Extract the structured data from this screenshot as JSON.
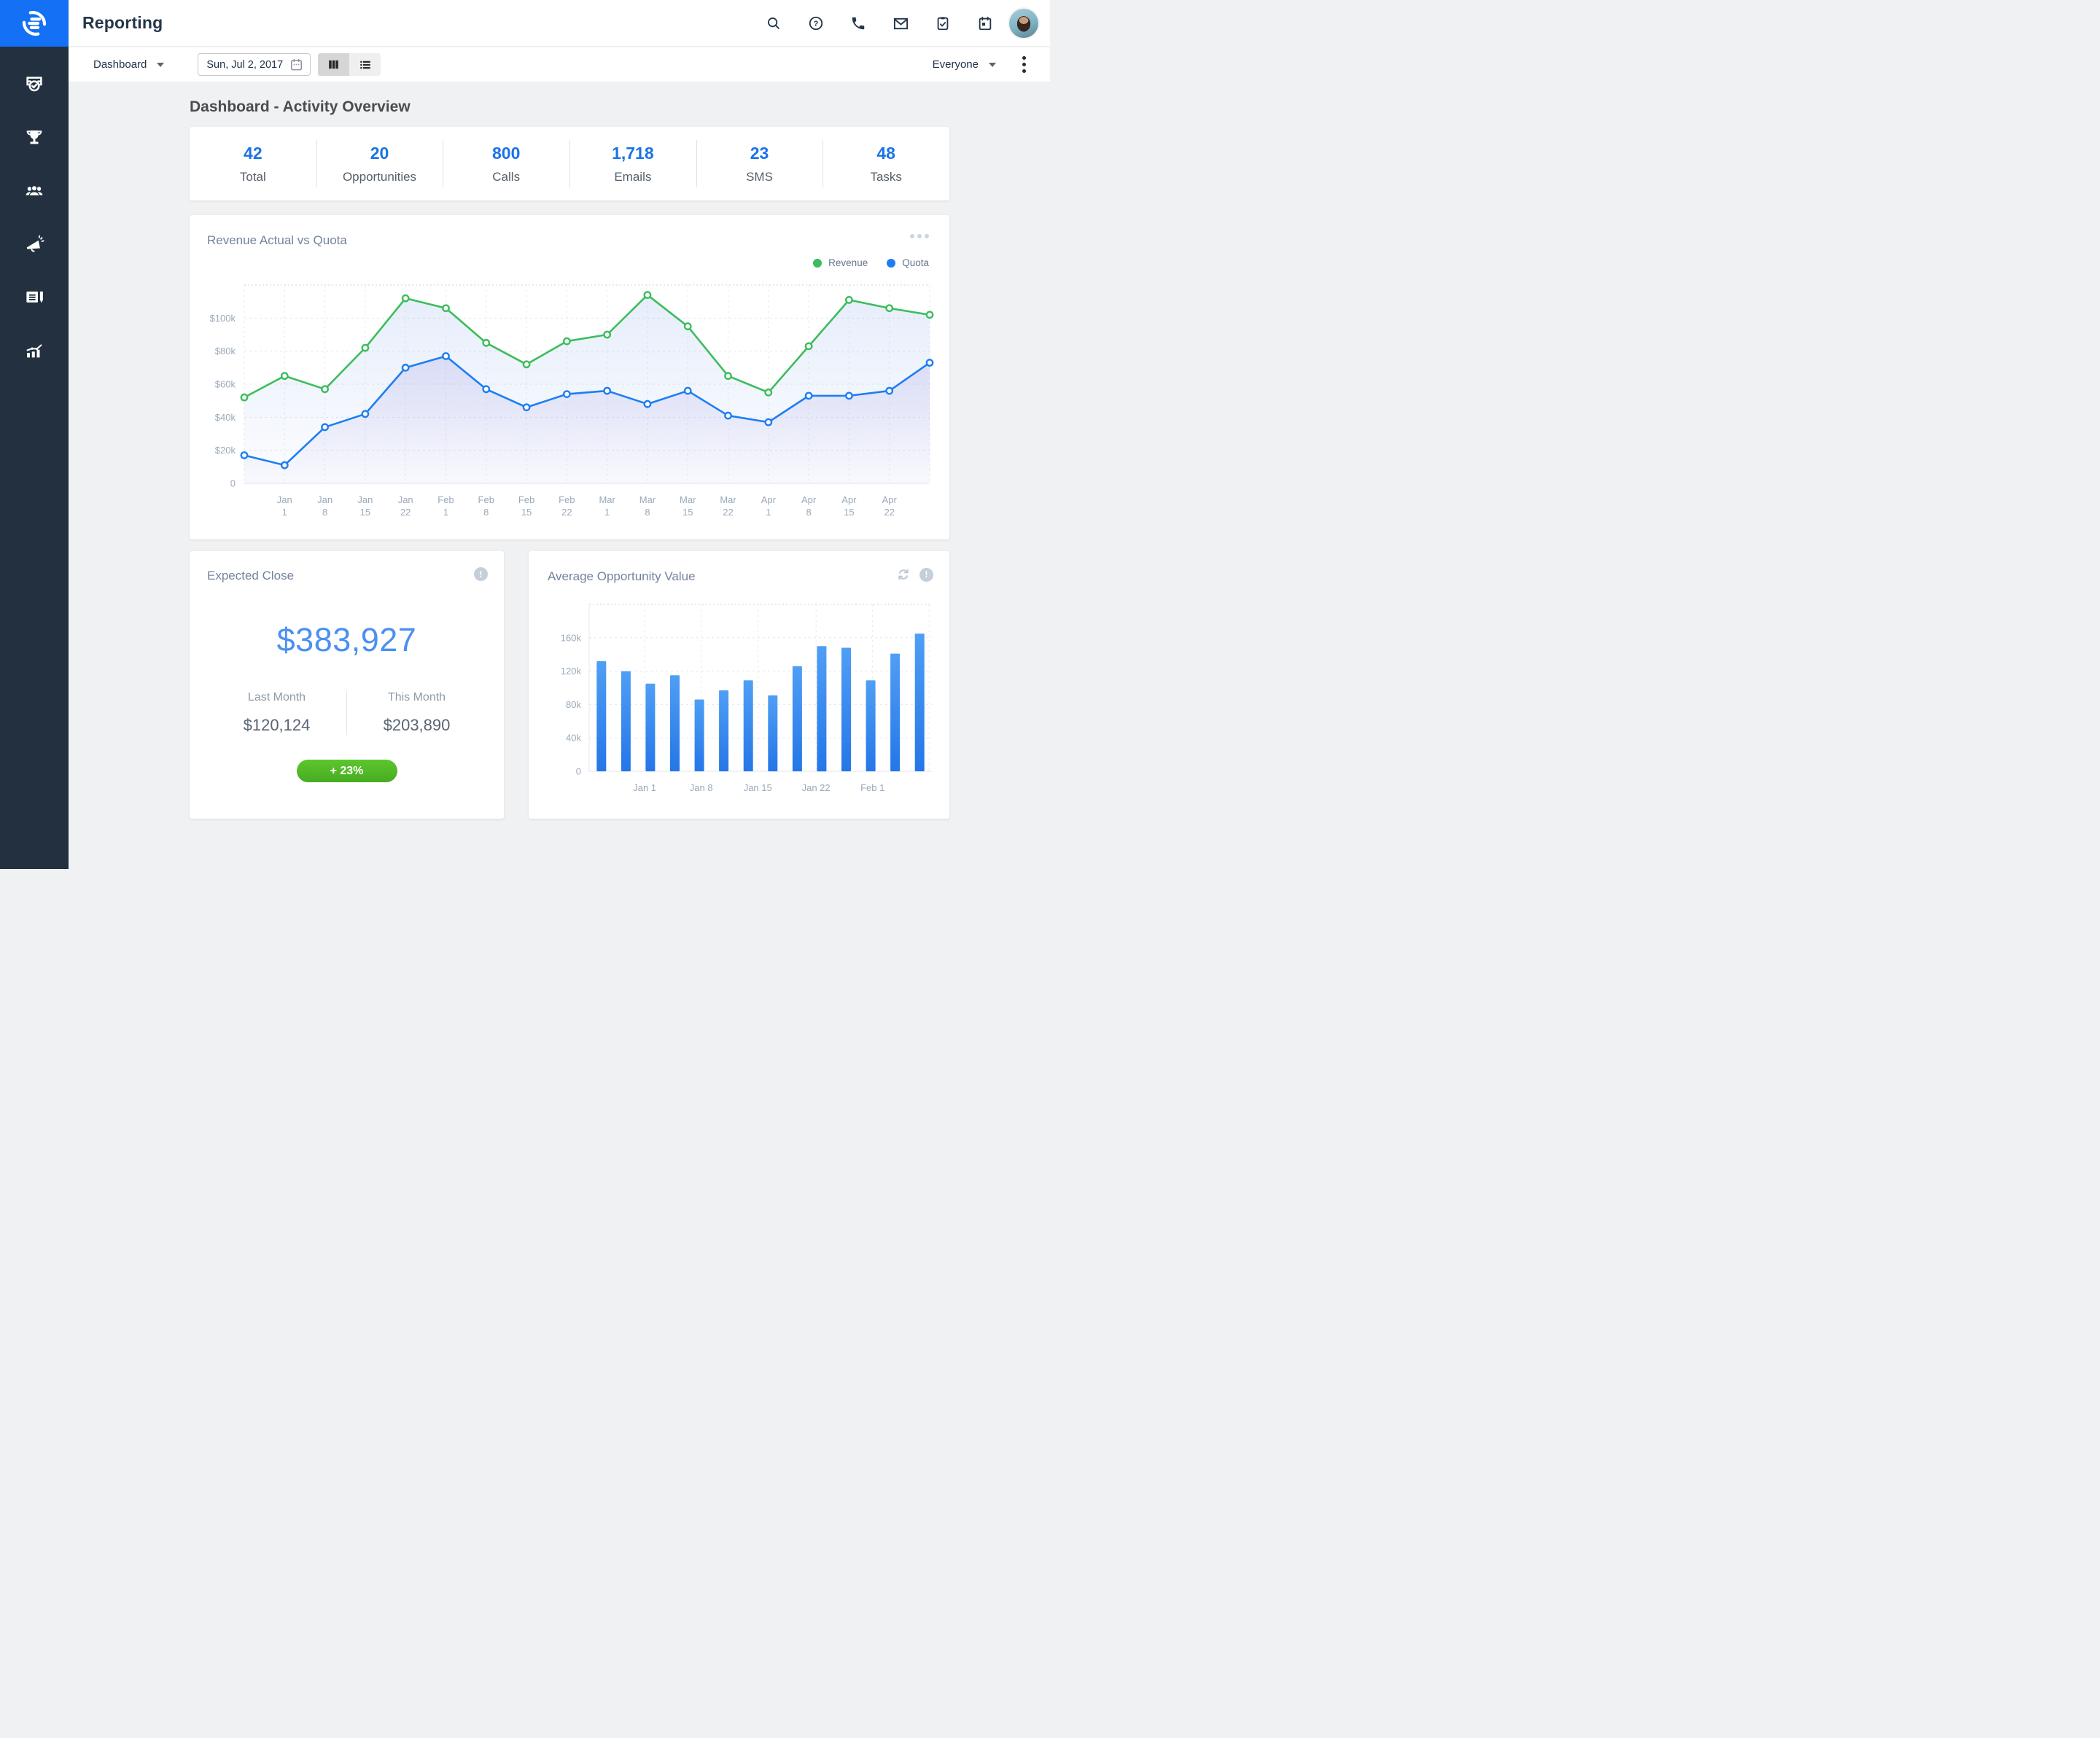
{
  "app": {
    "title": "Reporting"
  },
  "topbar": {
    "icons": [
      "search-icon",
      "help-icon",
      "phone-icon",
      "mail-icon",
      "tasks-clipboard-icon",
      "calendar-icon"
    ],
    "avatar": "user-avatar"
  },
  "toolbar": {
    "report_selector": "Dashboard",
    "date": "Sun, Jul 2, 2017",
    "view_modes": [
      "columns-view",
      "list-view"
    ],
    "active_view": "columns-view",
    "audience": "Everyone"
  },
  "sidebar": {
    "items": [
      "activities-icon",
      "deals-trophy-icon",
      "contacts-icon",
      "campaigns-megaphone-icon",
      "notes-icon",
      "reports-chart-icon"
    ]
  },
  "page": {
    "heading": "Dashboard - Activity Overview"
  },
  "stats": [
    {
      "value": "42",
      "label": "Total"
    },
    {
      "value": "20",
      "label": "Opportunities"
    },
    {
      "value": "800",
      "label": "Calls"
    },
    {
      "value": "1,718",
      "label": "Emails"
    },
    {
      "value": "23",
      "label": "SMS"
    },
    {
      "value": "48",
      "label": "Tasks"
    }
  ],
  "expected_close": {
    "title": "Expected Close",
    "amount": "$383,927",
    "columns": [
      {
        "label": "Last Month",
        "value": "$120,124"
      },
      {
        "label": "This Month",
        "value": "$203,890"
      }
    ],
    "change_badge": "+ 23%",
    "badge_color": "#4fb32a"
  },
  "colors": {
    "brand_blue": "#1470f4",
    "sidebar_bg": "#22303f",
    "stat_number_blue": "#1a73e8",
    "amount_blue": "#4a90f2",
    "revenue_green": "#3cbd5c",
    "quota_blue": "#1c7ef2",
    "bar_blue": "#2e84ee",
    "badge_green": "#4fb32a"
  },
  "chart_data": [
    {
      "id": "revenue-actual-vs-quota",
      "type": "line",
      "title": "Revenue Actual vs Quota",
      "x_labels": [
        "",
        "Jan 1",
        "Jan 8",
        "Jan 15",
        "Jan 22",
        "Feb 1",
        "Feb 8",
        "Feb 15",
        "Feb 22",
        "Mar 1",
        "Mar 8",
        "Mar 15",
        "Mar 22",
        "Apr 1",
        "Apr 8",
        "Apr 15",
        "Apr 22",
        ""
      ],
      "unit": "USD thousands",
      "series": [
        {
          "name": "Revenue",
          "color": "#3cbd5c",
          "values": [
            52,
            65,
            57,
            82,
            112,
            106,
            85,
            72,
            86,
            90,
            114,
            95,
            65,
            55,
            83,
            111,
            106,
            102
          ]
        },
        {
          "name": "Quota",
          "color": "#1c7ef2",
          "values": [
            17,
            11,
            34,
            42,
            70,
            77,
            57,
            46,
            54,
            56,
            48,
            56,
            41,
            37,
            53,
            53,
            56,
            73
          ]
        }
      ],
      "y_ticks": [
        "0",
        "$20k",
        "$40k",
        "$60k",
        "$80k",
        "$100k"
      ],
      "y_tick_values": [
        0,
        20,
        40,
        60,
        80,
        100
      ],
      "ylim": [
        0,
        120
      ],
      "grid": true,
      "legend_position": "top-right"
    },
    {
      "id": "average-opportunity-value",
      "type": "bar",
      "title": "Average Opportunity Value",
      "values": [
        132,
        120,
        105,
        115,
        86,
        97,
        109,
        91,
        126,
        150,
        148,
        109,
        141,
        165
      ],
      "unit": "USD thousands",
      "x_tick_labels": [
        "Jan 1",
        "Jan 8",
        "Jan 15",
        "Jan 22",
        "Feb 1"
      ],
      "x_grid_positions": [
        0.162,
        0.327,
        0.492,
        0.662,
        0.827,
        0.992
      ],
      "y_ticks": [
        "0",
        "40k",
        "80k",
        "120k",
        "160k"
      ],
      "y_tick_values": [
        0,
        40,
        80,
        120,
        160
      ],
      "ylim": [
        0,
        200
      ],
      "bar_color": "#2e84ee",
      "grid": true
    }
  ]
}
